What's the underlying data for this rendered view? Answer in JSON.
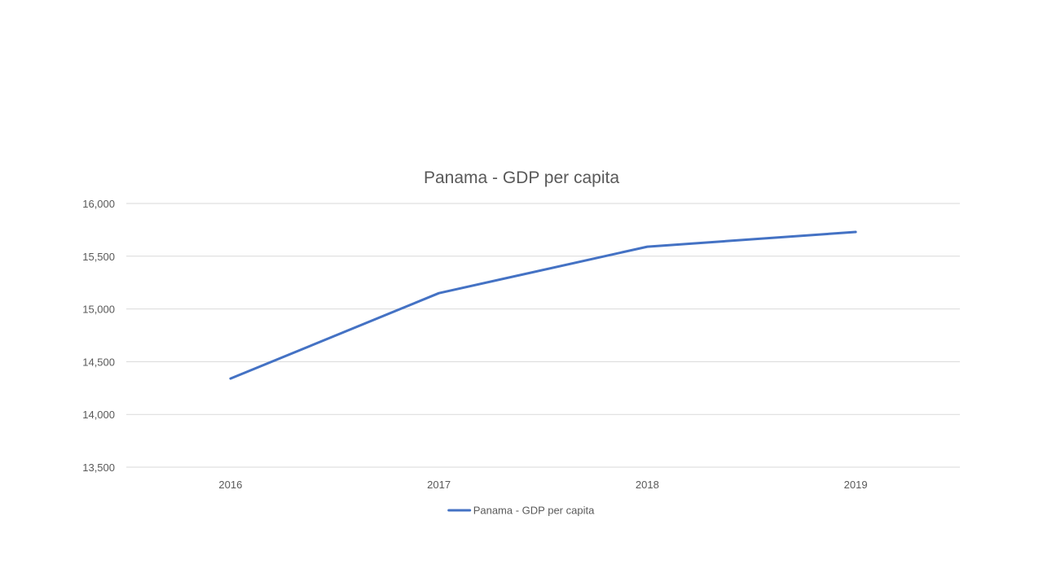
{
  "chart_data": {
    "type": "line",
    "title": "Panama - GDP per capita",
    "xlabel": "",
    "ylabel": "",
    "categories": [
      "2016",
      "2017",
      "2018",
      "2019"
    ],
    "series": [
      {
        "name": "Panama - GDP per capita",
        "values": [
          14340,
          15150,
          15590,
          15730
        ],
        "color": "#4472c4"
      }
    ],
    "ylim": [
      13500,
      16000
    ],
    "yticks": [
      13500,
      14000,
      14500,
      15000,
      15500,
      16000
    ],
    "ytick_labels": [
      "13,500",
      "14,000",
      "14,500",
      "15,000",
      "15,500",
      "16,000"
    ],
    "grid": true,
    "legend_position": "bottom"
  }
}
